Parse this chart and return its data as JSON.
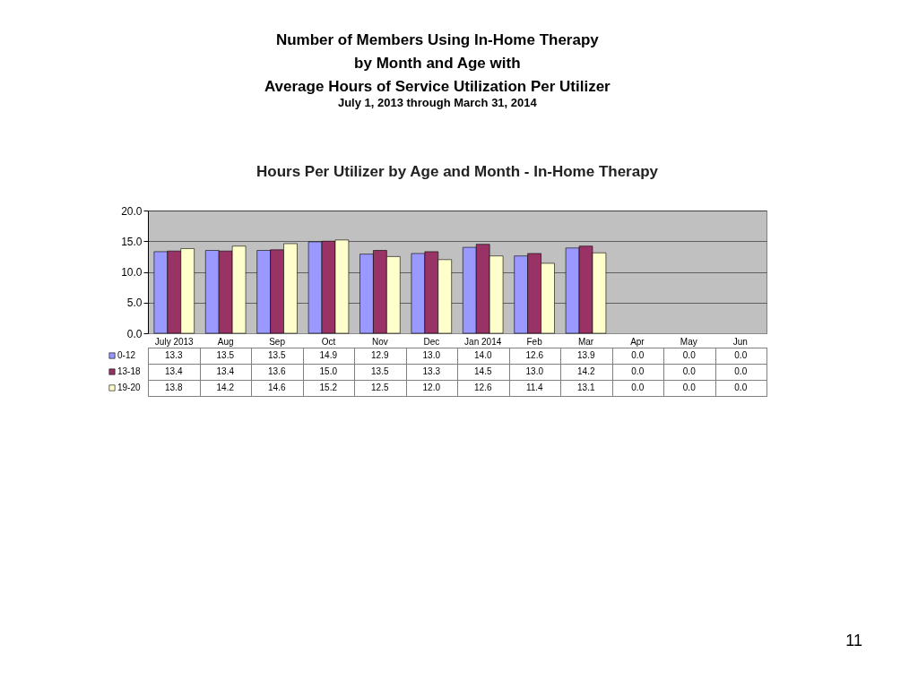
{
  "chart_data": {
    "type": "bar",
    "title": "Number of Members Using In-Home Therapy\nby Month and Age with\nAverage Hours of Service Utilization Per Utilizer",
    "subtitle": "July 1, 2013 through March 31, 2014",
    "annotations": [
      "Hours Per Utilizer by Age and Month - In-Home Therapy",
      "11"
    ],
    "categories": [
      "July 2013",
      "Aug",
      "Sep",
      "Oct",
      "Nov",
      "Dec",
      "Jan 2014",
      "Feb",
      "Mar",
      "Apr",
      "May",
      "Jun"
    ],
    "series": [
      {
        "name": "0-12",
        "color": "#9999ff",
        "values": [
          13.3,
          13.5,
          13.5,
          14.9,
          12.9,
          13.0,
          14.0,
          12.6,
          13.9,
          0,
          0,
          0
        ],
        "value_labels": [
          "13.3",
          "13.5",
          "13.5",
          "14.9",
          "12.9",
          "13.0",
          "14.0",
          "12.6",
          "13.9",
          "0.0",
          "0.0",
          "0.0"
        ]
      },
      {
        "name": "13-18",
        "color": "#993366",
        "values": [
          13.4,
          13.4,
          13.6,
          15.0,
          13.5,
          13.3,
          14.5,
          13.0,
          14.2,
          0,
          0,
          0
        ],
        "value_labels": [
          "13.4",
          "13.4",
          "13.6",
          "15.0",
          "13.5",
          "13.3",
          "14.5",
          "13.0",
          "14.2",
          "0.0",
          "0.0",
          "0.0"
        ]
      },
      {
        "name": "19-20",
        "color": "#ffffcc",
        "values": [
          13.8,
          14.2,
          14.6,
          15.2,
          12.5,
          12.0,
          12.6,
          11.4,
          13.1,
          0,
          0,
          0
        ],
        "value_labels": [
          "13.8",
          "14.2",
          "14.6",
          "15.2",
          "12.5",
          "12.0",
          "12.6",
          "11.4",
          "13.1",
          "0.0",
          "0.0",
          "0.0"
        ]
      }
    ],
    "ylim": [
      0,
      20
    ],
    "yticks": [
      {
        "value": 0,
        "label": "0.0"
      },
      {
        "value": 5,
        "label": "5.0"
      },
      {
        "value": 10,
        "label": "10.0"
      },
      {
        "value": 15,
        "label": "15.0"
      },
      {
        "value": 20,
        "label": "20.0"
      }
    ],
    "grid": "y",
    "legend": "bottom left"
  }
}
